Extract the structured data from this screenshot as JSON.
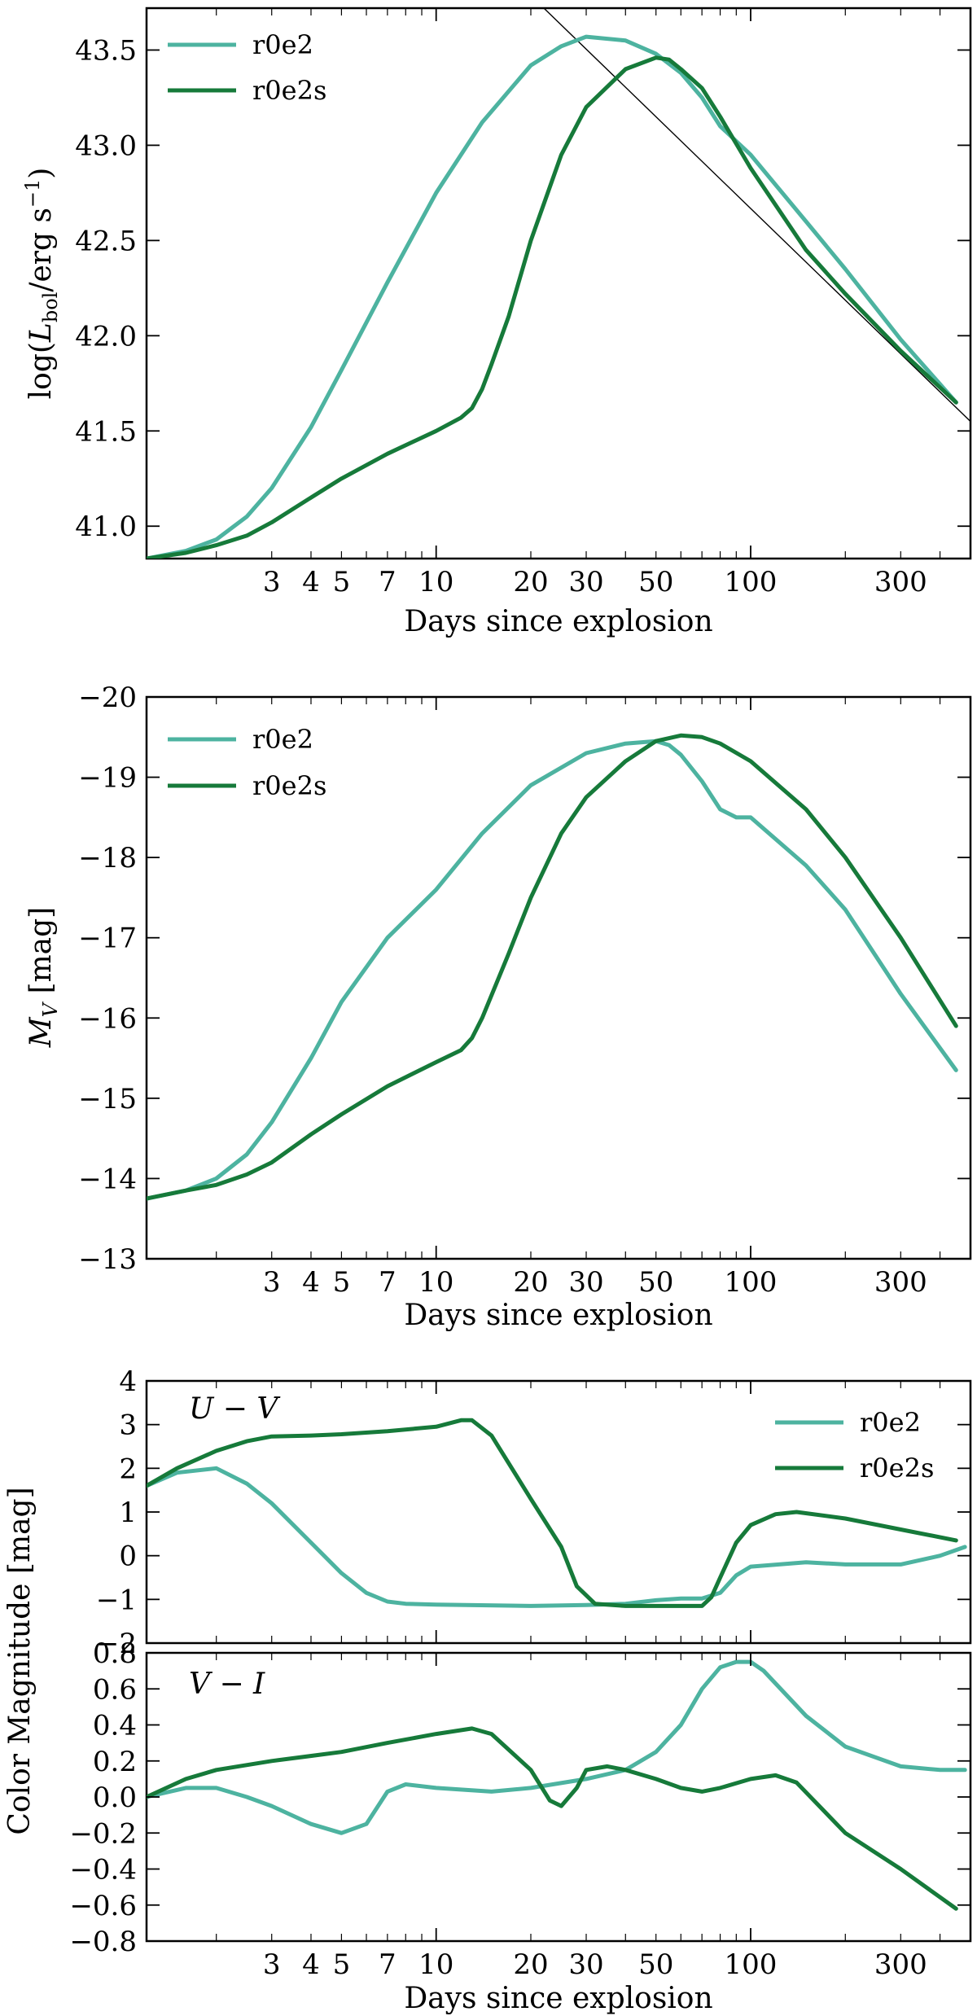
{
  "colors": {
    "r0e2": "#4db3a0",
    "r0e2s": "#167a3a",
    "reference": "#000000"
  },
  "chart_data": [
    {
      "type": "line",
      "id": "lbol",
      "xlabel": "Days since explosion",
      "ylabel": "log(L_bol / erg s^-1)",
      "ylabel_parts": {
        "pre": "log(",
        "L": "L",
        "sub": "bol",
        "mid": "/erg s",
        "sup": "−1",
        "post": ")"
      },
      "xscale": "log",
      "xlim": [
        1.2,
        500
      ],
      "ylim": [
        40.83,
        43.72
      ],
      "xticks": [
        3,
        4,
        5,
        7,
        10,
        20,
        30,
        50,
        100,
        300
      ],
      "xtick_labels": [
        "3",
        "4",
        "5",
        "7",
        "10",
        "20",
        "30",
        "50",
        "100",
        "300"
      ],
      "yticks": [
        41.0,
        41.5,
        42.0,
        42.5,
        43.0,
        43.5
      ],
      "ytick_labels": [
        "41.0",
        "41.5",
        "42.0",
        "42.5",
        "43.0",
        "43.5"
      ],
      "legend": {
        "position": "top-left",
        "entries": [
          "r0e2",
          "r0e2s"
        ]
      },
      "series": [
        {
          "name": "r0e2",
          "points": [
            [
              1.2,
              40.83
            ],
            [
              1.6,
              40.87
            ],
            [
              2,
              40.93
            ],
            [
              2.5,
              41.05
            ],
            [
              3,
              41.2
            ],
            [
              4,
              41.52
            ],
            [
              5,
              41.82
            ],
            [
              7,
              42.28
            ],
            [
              10,
              42.75
            ],
            [
              14,
              43.12
            ],
            [
              20,
              43.42
            ],
            [
              25,
              43.52
            ],
            [
              30,
              43.57
            ],
            [
              40,
              43.55
            ],
            [
              50,
              43.48
            ],
            [
              60,
              43.38
            ],
            [
              70,
              43.25
            ],
            [
              80,
              43.1
            ],
            [
              100,
              42.95
            ],
            [
              150,
              42.6
            ],
            [
              200,
              42.35
            ],
            [
              300,
              41.98
            ],
            [
              450,
              41.65
            ]
          ]
        },
        {
          "name": "r0e2s",
          "points": [
            [
              1.2,
              40.83
            ],
            [
              1.6,
              40.86
            ],
            [
              2,
              40.9
            ],
            [
              2.5,
              40.95
            ],
            [
              3,
              41.02
            ],
            [
              4,
              41.15
            ],
            [
              5,
              41.25
            ],
            [
              7,
              41.38
            ],
            [
              10,
              41.5
            ],
            [
              12,
              41.57
            ],
            [
              13,
              41.62
            ],
            [
              14,
              41.72
            ],
            [
              15,
              41.85
            ],
            [
              17,
              42.1
            ],
            [
              20,
              42.5
            ],
            [
              25,
              42.95
            ],
            [
              30,
              43.2
            ],
            [
              40,
              43.4
            ],
            [
              50,
              43.46
            ],
            [
              55,
              43.45
            ],
            [
              60,
              43.4
            ],
            [
              70,
              43.3
            ],
            [
              80,
              43.15
            ],
            [
              100,
              42.88
            ],
            [
              150,
              42.45
            ],
            [
              200,
              42.22
            ],
            [
              300,
              41.92
            ],
            [
              450,
              41.65
            ]
          ]
        },
        {
          "name": "reference",
          "points": [
            [
              22,
              43.72
            ],
            [
              500,
              41.55
            ]
          ]
        }
      ]
    },
    {
      "type": "line",
      "id": "mv",
      "xlabel": "Days since explosion",
      "ylabel": "M_V [mag]",
      "ylabel_parts": {
        "M": "M",
        "sub": "V",
        "post": " [mag]"
      },
      "xscale": "log",
      "xlim": [
        1.2,
        500
      ],
      "ylim": [
        -13,
        -20
      ],
      "xticks": [
        3,
        4,
        5,
        7,
        10,
        20,
        30,
        50,
        100,
        300
      ],
      "xtick_labels": [
        "3",
        "4",
        "5",
        "7",
        "10",
        "20",
        "30",
        "50",
        "100",
        "300"
      ],
      "yticks": [
        -13,
        -14,
        -15,
        -16,
        -17,
        -18,
        -19,
        -20
      ],
      "ytick_labels": [
        "−13",
        "−14",
        "−15",
        "−16",
        "−17",
        "−18",
        "−19",
        "−20"
      ],
      "legend": {
        "position": "top-left",
        "entries": [
          "r0e2",
          "r0e2s"
        ]
      },
      "series": [
        {
          "name": "r0e2",
          "points": [
            [
              1.2,
              -13.75
            ],
            [
              1.6,
              -13.85
            ],
            [
              2,
              -14.0
            ],
            [
              2.5,
              -14.3
            ],
            [
              3,
              -14.7
            ],
            [
              4,
              -15.5
            ],
            [
              5,
              -16.2
            ],
            [
              7,
              -17.0
            ],
            [
              10,
              -17.6
            ],
            [
              14,
              -18.3
            ],
            [
              20,
              -18.9
            ],
            [
              30,
              -19.3
            ],
            [
              40,
              -19.42
            ],
            [
              50,
              -19.45
            ],
            [
              55,
              -19.4
            ],
            [
              60,
              -19.28
            ],
            [
              70,
              -18.95
            ],
            [
              80,
              -18.6
            ],
            [
              90,
              -18.5
            ],
            [
              100,
              -18.5
            ],
            [
              150,
              -17.9
            ],
            [
              200,
              -17.35
            ],
            [
              300,
              -16.3
            ],
            [
              450,
              -15.35
            ]
          ]
        },
        {
          "name": "r0e2s",
          "points": [
            [
              1.2,
              -13.75
            ],
            [
              1.6,
              -13.85
            ],
            [
              2,
              -13.92
            ],
            [
              2.5,
              -14.05
            ],
            [
              3,
              -14.2
            ],
            [
              4,
              -14.55
            ],
            [
              5,
              -14.8
            ],
            [
              7,
              -15.15
            ],
            [
              10,
              -15.45
            ],
            [
              12,
              -15.6
            ],
            [
              13,
              -15.75
            ],
            [
              14,
              -16.0
            ],
            [
              17,
              -16.8
            ],
            [
              20,
              -17.5
            ],
            [
              25,
              -18.3
            ],
            [
              30,
              -18.75
            ],
            [
              40,
              -19.2
            ],
            [
              50,
              -19.45
            ],
            [
              60,
              -19.52
            ],
            [
              70,
              -19.5
            ],
            [
              80,
              -19.42
            ],
            [
              100,
              -19.2
            ],
            [
              150,
              -18.6
            ],
            [
              200,
              -18.0
            ],
            [
              300,
              -17.0
            ],
            [
              450,
              -15.9
            ]
          ]
        }
      ]
    },
    {
      "type": "line",
      "id": "uv",
      "annotation": "U − V",
      "xscale": "log",
      "xlim": [
        1.2,
        500
      ],
      "ylim": [
        -2,
        4
      ],
      "yticks": [
        -2,
        -1,
        0,
        1,
        2,
        3,
        4
      ],
      "ytick_labels": [
        "−2",
        "−1",
        "0",
        "1",
        "2",
        "3",
        "4"
      ],
      "legend": {
        "position": "top-right",
        "entries": [
          "r0e2",
          "r0e2s"
        ]
      },
      "series": [
        {
          "name": "r0e2",
          "points": [
            [
              1.2,
              1.6
            ],
            [
              1.5,
              1.9
            ],
            [
              2,
              2.0
            ],
            [
              2.5,
              1.65
            ],
            [
              3,
              1.2
            ],
            [
              4,
              0.3
            ],
            [
              5,
              -0.4
            ],
            [
              6,
              -0.85
            ],
            [
              7,
              -1.05
            ],
            [
              8,
              -1.1
            ],
            [
              10,
              -1.12
            ],
            [
              20,
              -1.15
            ],
            [
              30,
              -1.13
            ],
            [
              40,
              -1.1
            ],
            [
              50,
              -1.02
            ],
            [
              60,
              -0.98
            ],
            [
              70,
              -0.98
            ],
            [
              80,
              -0.85
            ],
            [
              90,
              -0.45
            ],
            [
              100,
              -0.25
            ],
            [
              150,
              -0.15
            ],
            [
              200,
              -0.2
            ],
            [
              300,
              -0.2
            ],
            [
              400,
              0.0
            ],
            [
              480,
              0.2
            ]
          ]
        },
        {
          "name": "r0e2s",
          "points": [
            [
              1.2,
              1.6
            ],
            [
              1.5,
              2.0
            ],
            [
              2,
              2.4
            ],
            [
              2.5,
              2.62
            ],
            [
              3,
              2.73
            ],
            [
              4,
              2.75
            ],
            [
              5,
              2.78
            ],
            [
              7,
              2.85
            ],
            [
              10,
              2.95
            ],
            [
              12,
              3.1
            ],
            [
              13,
              3.1
            ],
            [
              15,
              2.75
            ],
            [
              20,
              1.3
            ],
            [
              25,
              0.2
            ],
            [
              28,
              -0.7
            ],
            [
              32,
              -1.1
            ],
            [
              40,
              -1.15
            ],
            [
              50,
              -1.15
            ],
            [
              60,
              -1.15
            ],
            [
              70,
              -1.15
            ],
            [
              75,
              -0.95
            ],
            [
              80,
              -0.5
            ],
            [
              90,
              0.3
            ],
            [
              100,
              0.7
            ],
            [
              120,
              0.95
            ],
            [
              140,
              1.0
            ],
            [
              200,
              0.85
            ],
            [
              300,
              0.6
            ],
            [
              450,
              0.35
            ]
          ]
        }
      ]
    },
    {
      "type": "line",
      "id": "vi",
      "annotation": "V − I",
      "xlabel": "Days since explosion",
      "shared_ylabel": "Color Magnitude [mag]",
      "xscale": "log",
      "xlim": [
        1.2,
        500
      ],
      "ylim": [
        -0.8,
        0.8
      ],
      "xticks": [
        3,
        4,
        5,
        7,
        10,
        20,
        30,
        50,
        100,
        300
      ],
      "xtick_labels": [
        "3",
        "4",
        "5",
        "7",
        "10",
        "20",
        "30",
        "50",
        "100",
        "300"
      ],
      "yticks": [
        -0.8,
        -0.6,
        -0.4,
        -0.2,
        0.0,
        0.2,
        0.4,
        0.6,
        0.8
      ],
      "ytick_labels": [
        "−0.8",
        "−0.6",
        "−0.4",
        "−0.2",
        "0.0",
        "0.2",
        "0.4",
        "0.6",
        "0.8"
      ],
      "series": [
        {
          "name": "r0e2",
          "points": [
            [
              1.2,
              0.0
            ],
            [
              1.6,
              0.05
            ],
            [
              2,
              0.05
            ],
            [
              2.5,
              0.0
            ],
            [
              3,
              -0.05
            ],
            [
              4,
              -0.15
            ],
            [
              5,
              -0.2
            ],
            [
              6,
              -0.15
            ],
            [
              7,
              0.03
            ],
            [
              8,
              0.07
            ],
            [
              10,
              0.05
            ],
            [
              15,
              0.03
            ],
            [
              20,
              0.05
            ],
            [
              30,
              0.1
            ],
            [
              40,
              0.15
            ],
            [
              50,
              0.25
            ],
            [
              60,
              0.4
            ],
            [
              70,
              0.6
            ],
            [
              80,
              0.72
            ],
            [
              90,
              0.75
            ],
            [
              100,
              0.75
            ],
            [
              110,
              0.7
            ],
            [
              150,
              0.45
            ],
            [
              200,
              0.28
            ],
            [
              300,
              0.17
            ],
            [
              400,
              0.15
            ],
            [
              480,
              0.15
            ]
          ]
        },
        {
          "name": "r0e2s",
          "points": [
            [
              1.2,
              0.0
            ],
            [
              1.6,
              0.1
            ],
            [
              2,
              0.15
            ],
            [
              3,
              0.2
            ],
            [
              5,
              0.25
            ],
            [
              7,
              0.3
            ],
            [
              10,
              0.35
            ],
            [
              13,
              0.38
            ],
            [
              15,
              0.35
            ],
            [
              20,
              0.15
            ],
            [
              23,
              -0.02
            ],
            [
              25,
              -0.05
            ],
            [
              28,
              0.05
            ],
            [
              30,
              0.15
            ],
            [
              35,
              0.17
            ],
            [
              40,
              0.15
            ],
            [
              50,
              0.1
            ],
            [
              60,
              0.05
            ],
            [
              70,
              0.03
            ],
            [
              80,
              0.05
            ],
            [
              100,
              0.1
            ],
            [
              120,
              0.12
            ],
            [
              140,
              0.08
            ],
            [
              200,
              -0.2
            ],
            [
              300,
              -0.4
            ],
            [
              450,
              -0.62
            ]
          ]
        }
      ]
    }
  ]
}
